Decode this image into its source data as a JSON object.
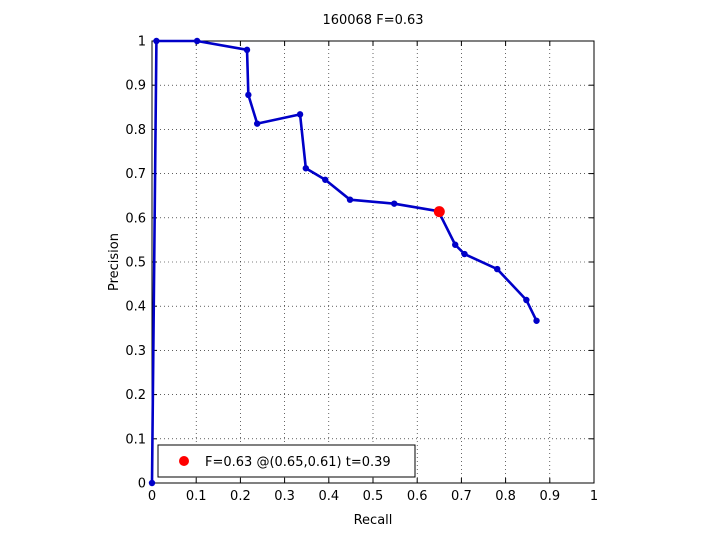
{
  "chart_data": {
    "type": "line",
    "title": "160068 F=0.63",
    "xlabel": "Recall",
    "ylabel": "Precision",
    "xlim": [
      0,
      1
    ],
    "ylim": [
      0,
      1
    ],
    "xticks": [
      "0",
      "0.1",
      "0.2",
      "0.3",
      "0.4",
      "0.5",
      "0.6",
      "0.7",
      "0.8",
      "0.9",
      "1"
    ],
    "yticks": [
      "0",
      "0.1",
      "0.2",
      "0.3",
      "0.4",
      "0.5",
      "0.6",
      "0.7",
      "0.8",
      "0.9",
      "1"
    ],
    "grid": true,
    "legend_position": "bottom-left",
    "series": [
      {
        "color": "#0000c8",
        "points": [
          [
            0.0,
            0.0
          ],
          [
            0.01,
            1.0
          ],
          [
            0.102,
            1.0
          ],
          [
            0.215,
            0.98
          ],
          [
            0.218,
            0.878
          ],
          [
            0.238,
            0.813
          ],
          [
            0.335,
            0.834
          ],
          [
            0.348,
            0.712
          ],
          [
            0.392,
            0.686
          ],
          [
            0.448,
            0.641
          ],
          [
            0.548,
            0.632
          ],
          [
            0.648,
            0.615
          ],
          [
            0.686,
            0.539
          ],
          [
            0.707,
            0.518
          ],
          [
            0.781,
            0.484
          ],
          [
            0.847,
            0.414
          ],
          [
            0.87,
            0.367
          ]
        ]
      }
    ],
    "highlight": {
      "x": 0.65,
      "y": 0.614,
      "color": "#ff0000",
      "label": "F=0.63 @(0.65,0.61) t=0.39"
    }
  }
}
